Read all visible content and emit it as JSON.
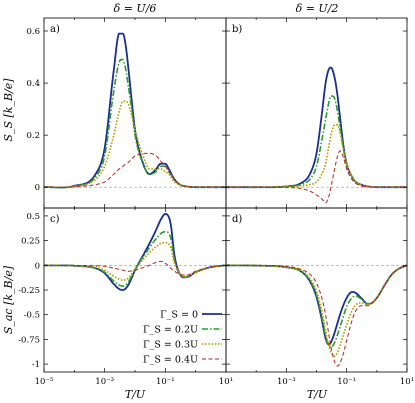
{
  "figure": {
    "column_titles": [
      "δ = U/6",
      "δ = U/2"
    ],
    "ylabels": [
      "S_S [k_B/e]",
      "S_ac [k_B/e]"
    ],
    "xlabel": "T/U"
  },
  "chart_data": {
    "type": "line",
    "xscale": "log",
    "xlim": [
      1e-05,
      10
    ],
    "xticks": [
      1e-05,
      0.001,
      0.1,
      10
    ],
    "xticklabels": [
      "10⁻⁵",
      "10⁻³",
      "10⁻¹",
      "10¹"
    ],
    "legend": {
      "placement": "panel-c-bottom-right",
      "entries": [
        "Γ_S = 0",
        "Γ_S = 0.2U",
        "Γ_S = 0.3U",
        "Γ_S = 0.4U"
      ]
    },
    "series_styles": [
      {
        "name": "Γ_S = 0",
        "color": "#1a2e8f",
        "dash": "solid",
        "width": 1.8
      },
      {
        "name": "Γ_S = 0.2U",
        "color": "#2e9a2e",
        "dash": "dashdot",
        "width": 1.6
      },
      {
        "name": "Γ_S = 0.3U",
        "color": "#b59a00",
        "dash": "dotted",
        "width": 1.6
      },
      {
        "name": "Γ_S = 0.4U",
        "color": "#b22222",
        "dash": "dashed",
        "width": 1.0
      }
    ],
    "panels": [
      {
        "label": "a)",
        "ylim": [
          -0.08,
          0.65
        ],
        "yticks": [
          0,
          0.2,
          0.4,
          0.6
        ],
        "yticklabels": [
          "0",
          "0.2",
          "0.4",
          "0.6"
        ],
        "x": [
          1e-05,
          0.0001,
          0.0005,
          0.001,
          0.002,
          0.003,
          0.004,
          0.005,
          0.006,
          0.008,
          0.01,
          0.02,
          0.03,
          0.05,
          0.07,
          0.1,
          0.13,
          0.2,
          0.3,
          0.5,
          1,
          10
        ],
        "series": [
          [
            0,
            0.005,
            0.05,
            0.15,
            0.45,
            0.59,
            0.59,
            0.54,
            0.46,
            0.32,
            0.22,
            0.08,
            0.05,
            0.07,
            0.09,
            0.09,
            0.07,
            0.03,
            0.01,
            0.003,
            0,
            0
          ],
          [
            0,
            0.004,
            0.04,
            0.12,
            0.37,
            0.48,
            0.49,
            0.45,
            0.39,
            0.29,
            0.2,
            0.08,
            0.05,
            0.06,
            0.08,
            0.08,
            0.06,
            0.03,
            0.01,
            0.003,
            0,
            0
          ],
          [
            0,
            0.003,
            0.03,
            0.08,
            0.2,
            0.29,
            0.33,
            0.33,
            0.32,
            0.27,
            0.22,
            0.11,
            0.07,
            0.07,
            0.07,
            0.06,
            0.05,
            0.02,
            0.01,
            0.003,
            0,
            0
          ],
          [
            0,
            0.001,
            0.01,
            0.02,
            0.05,
            0.07,
            0.08,
            0.09,
            0.095,
            0.11,
            0.12,
            0.13,
            0.13,
            0.12,
            0.1,
            0.08,
            0.06,
            0.03,
            0.01,
            0.003,
            0,
            0
          ]
        ]
      },
      {
        "label": "b)",
        "ylim": [
          -0.08,
          0.65
        ],
        "yticks": [
          0,
          0.2,
          0.4,
          0.6
        ],
        "yticklabels": [
          "0",
          "0.2",
          "0.4",
          "0.6"
        ],
        "x": [
          1e-05,
          0.0001,
          0.001,
          0.003,
          0.006,
          0.01,
          0.015,
          0.02,
          0.025,
          0.03,
          0.04,
          0.05,
          0.06,
          0.08,
          0.1,
          0.15,
          0.2,
          0.3,
          0.5,
          1,
          10
        ],
        "series": [
          [
            0,
            0,
            0.003,
            0.015,
            0.05,
            0.13,
            0.28,
            0.4,
            0.45,
            0.46,
            0.42,
            0.35,
            0.27,
            0.15,
            0.09,
            0.04,
            0.02,
            0.01,
            0.003,
            0,
            0
          ],
          [
            0,
            0,
            0.003,
            0.01,
            0.03,
            0.08,
            0.18,
            0.26,
            0.32,
            0.35,
            0.34,
            0.29,
            0.23,
            0.14,
            0.09,
            0.04,
            0.02,
            0.01,
            0.003,
            0,
            0
          ],
          [
            0,
            0,
            0.002,
            0.005,
            0.01,
            0.02,
            0.05,
            0.09,
            0.15,
            0.2,
            0.24,
            0.24,
            0.21,
            0.14,
            0.09,
            0.04,
            0.02,
            0.01,
            0.003,
            0,
            0
          ],
          [
            0,
            0,
            -0.001,
            -0.005,
            -0.015,
            -0.03,
            -0.045,
            -0.06,
            -0.04,
            0.0,
            0.07,
            0.12,
            0.14,
            0.11,
            0.07,
            0.03,
            0.015,
            0.005,
            0.002,
            0,
            0
          ]
        ]
      },
      {
        "label": "c)",
        "ylim": [
          -1.08,
          0.58
        ],
        "yticks": [
          0.5,
          0.25,
          0,
          -0.25,
          -0.5,
          -0.75,
          -1
        ],
        "yticklabels": [
          "0.5",
          "0.25",
          "0",
          "-0.25",
          "-0.5",
          "-0.75",
          "-1"
        ],
        "x": [
          1e-05,
          0.0001,
          0.0005,
          0.001,
          0.002,
          0.003,
          0.004,
          0.006,
          0.01,
          0.02,
          0.03,
          0.05,
          0.07,
          0.1,
          0.15,
          0.2,
          0.3,
          0.5,
          1,
          3,
          10
        ],
        "series": [
          [
            0,
            -0.005,
            -0.03,
            -0.08,
            -0.19,
            -0.24,
            -0.25,
            -0.2,
            -0.05,
            0.12,
            0.22,
            0.36,
            0.46,
            0.52,
            0.42,
            0.1,
            -0.09,
            -0.12,
            -0.07,
            -0.02,
            0
          ],
          [
            0,
            -0.005,
            -0.03,
            -0.07,
            -0.16,
            -0.2,
            -0.21,
            -0.17,
            -0.04,
            0.1,
            0.18,
            0.27,
            0.32,
            0.34,
            0.28,
            0.05,
            -0.09,
            -0.12,
            -0.07,
            -0.02,
            0
          ],
          [
            0,
            -0.004,
            -0.02,
            -0.05,
            -0.11,
            -0.14,
            -0.15,
            -0.13,
            -0.04,
            0.07,
            0.13,
            0.19,
            0.22,
            0.23,
            0.18,
            0.02,
            -0.09,
            -0.11,
            -0.07,
            -0.02,
            0
          ],
          [
            0,
            -0.001,
            -0.005,
            -0.01,
            -0.03,
            -0.04,
            -0.05,
            -0.06,
            -0.05,
            -0.02,
            0.0,
            0.03,
            0.04,
            0.02,
            -0.03,
            -0.06,
            -0.09,
            -0.1,
            -0.06,
            -0.02,
            0
          ]
        ]
      },
      {
        "label": "d)",
        "ylim": [
          -1.08,
          0.58
        ],
        "yticks": [
          0.5,
          0.25,
          0,
          -0.25,
          -0.5,
          -0.75,
          -1
        ],
        "yticklabels": [
          "0.5",
          "0.25",
          "0",
          "-0.25",
          "-0.5",
          "-0.75",
          "-1"
        ],
        "x": [
          1e-05,
          0.0001,
          0.001,
          0.003,
          0.006,
          0.01,
          0.015,
          0.02,
          0.025,
          0.03,
          0.04,
          0.05,
          0.07,
          0.1,
          0.15,
          0.2,
          0.3,
          0.5,
          0.7,
          1,
          2,
          3,
          5,
          10
        ],
        "series": [
          [
            0,
            -0.003,
            -0.02,
            -0.06,
            -0.16,
            -0.32,
            -0.55,
            -0.74,
            -0.8,
            -0.78,
            -0.68,
            -0.58,
            -0.44,
            -0.33,
            -0.27,
            -0.28,
            -0.33,
            -0.39,
            -0.38,
            -0.33,
            -0.18,
            -0.1,
            -0.04,
            0
          ],
          [
            0,
            -0.003,
            -0.02,
            -0.06,
            -0.15,
            -0.3,
            -0.52,
            -0.72,
            -0.8,
            -0.83,
            -0.78,
            -0.7,
            -0.56,
            -0.42,
            -0.33,
            -0.31,
            -0.34,
            -0.39,
            -0.38,
            -0.33,
            -0.18,
            -0.1,
            -0.04,
            0
          ],
          [
            0,
            -0.002,
            -0.02,
            -0.05,
            -0.13,
            -0.26,
            -0.46,
            -0.66,
            -0.8,
            -0.88,
            -0.92,
            -0.88,
            -0.75,
            -0.6,
            -0.46,
            -0.4,
            -0.38,
            -0.4,
            -0.38,
            -0.33,
            -0.18,
            -0.1,
            -0.04,
            0
          ],
          [
            0,
            -0.002,
            -0.01,
            -0.04,
            -0.09,
            -0.18,
            -0.33,
            -0.5,
            -0.68,
            -0.82,
            -0.98,
            -1.02,
            -0.94,
            -0.76,
            -0.56,
            -0.46,
            -0.41,
            -0.41,
            -0.38,
            -0.33,
            -0.18,
            -0.1,
            -0.04,
            0
          ]
        ]
      }
    ]
  }
}
